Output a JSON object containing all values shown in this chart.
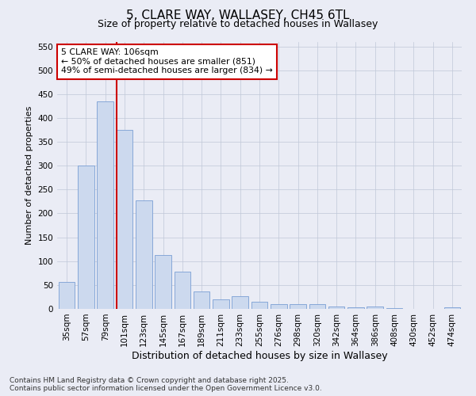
{
  "title": "5, CLARE WAY, WALLASEY, CH45 6TL",
  "subtitle": "Size of property relative to detached houses in Wallasey",
  "xlabel": "Distribution of detached houses by size in Wallasey",
  "ylabel": "Number of detached properties",
  "categories": [
    "35sqm",
    "57sqm",
    "79sqm",
    "101sqm",
    "123sqm",
    "145sqm",
    "167sqm",
    "189sqm",
    "211sqm",
    "233sqm",
    "255sqm",
    "276sqm",
    "298sqm",
    "320sqm",
    "342sqm",
    "364sqm",
    "386sqm",
    "408sqm",
    "430sqm",
    "452sqm",
    "474sqm"
  ],
  "values": [
    57,
    300,
    435,
    375,
    228,
    113,
    78,
    37,
    20,
    26,
    15,
    10,
    10,
    10,
    5,
    3,
    5,
    1,
    0,
    0,
    3
  ],
  "bar_color": "#ccd9ee",
  "bar_edge_color": "#7a9fd4",
  "vline_index": 3,
  "annotation_line1": "5 CLARE WAY: 106sqm",
  "annotation_line2": "← 50% of detached houses are smaller (851)",
  "annotation_line3": "49% of semi-detached houses are larger (834) →",
  "annotation_box_color": "#ffffff",
  "annotation_box_edge": "#cc0000",
  "vline_color": "#cc0000",
  "grid_color": "#c0c8d8",
  "background_color": "#eaecf5",
  "ylim": [
    0,
    560
  ],
  "yticks": [
    0,
    50,
    100,
    150,
    200,
    250,
    300,
    350,
    400,
    450,
    500,
    550
  ],
  "footer1": "Contains HM Land Registry data © Crown copyright and database right 2025.",
  "footer2": "Contains public sector information licensed under the Open Government Licence v3.0.",
  "title_fontsize": 11,
  "subtitle_fontsize": 9,
  "ylabel_fontsize": 8,
  "xlabel_fontsize": 9,
  "tick_fontsize": 7.5,
  "footer_fontsize": 6.5
}
